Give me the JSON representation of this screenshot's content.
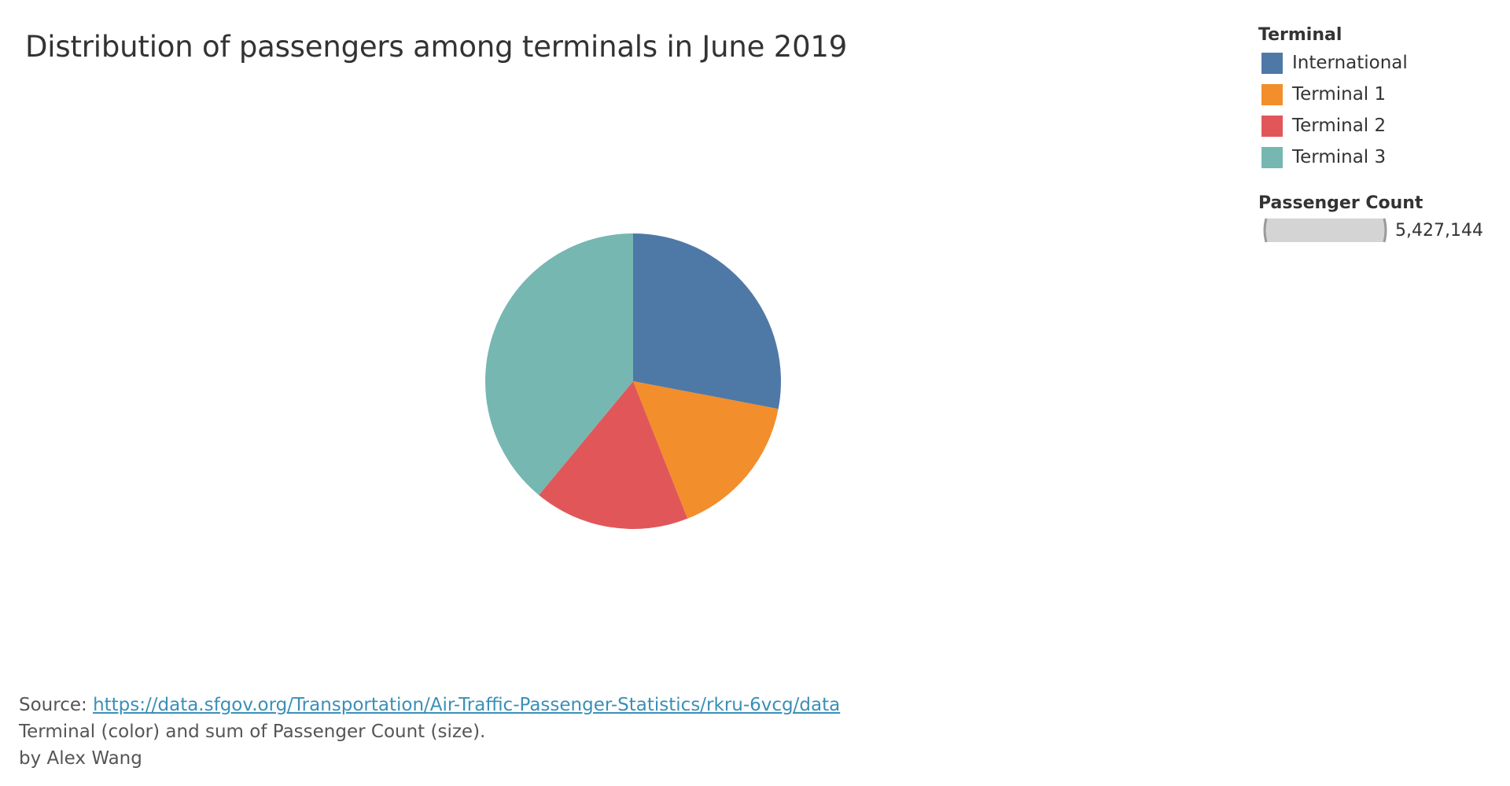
{
  "title": "Distribution of passengers among terminals in June 2019",
  "colors": {
    "International": "#4e79a7",
    "Terminal 1": "#f28e2b",
    "Terminal 2": "#e15759",
    "Terminal 3": "#76b7b2"
  },
  "legend": {
    "title": "Terminal",
    "items": [
      {
        "label": "International",
        "color": "#4e79a7"
      },
      {
        "label": "Terminal 1",
        "color": "#f28e2b"
      },
      {
        "label": "Terminal 2",
        "color": "#e15759"
      },
      {
        "label": "Terminal 3",
        "color": "#76b7b2"
      }
    ]
  },
  "size_legend": {
    "title": "Passenger Count",
    "value_label": "5,427,144"
  },
  "footer": {
    "source_prefix": "Source: ",
    "source_link": "https://data.sfgov.org/Transportation/Air-Traffic-Passenger-Statistics/rkru-6vcg/data",
    "description": "Terminal (color) and sum of Passenger Count (size).",
    "author": "by Alex Wang"
  },
  "chart_data": {
    "type": "pie",
    "title": "Distribution of passengers among terminals in June 2019",
    "categories": [
      "International",
      "Terminal 1",
      "Terminal 2",
      "Terminal 3"
    ],
    "values": [
      1519600,
      868343,
      922615,
      2116586
    ],
    "total": 5427144,
    "start_angle_deg": 0,
    "direction": "clockwise",
    "legend": "top-right"
  }
}
